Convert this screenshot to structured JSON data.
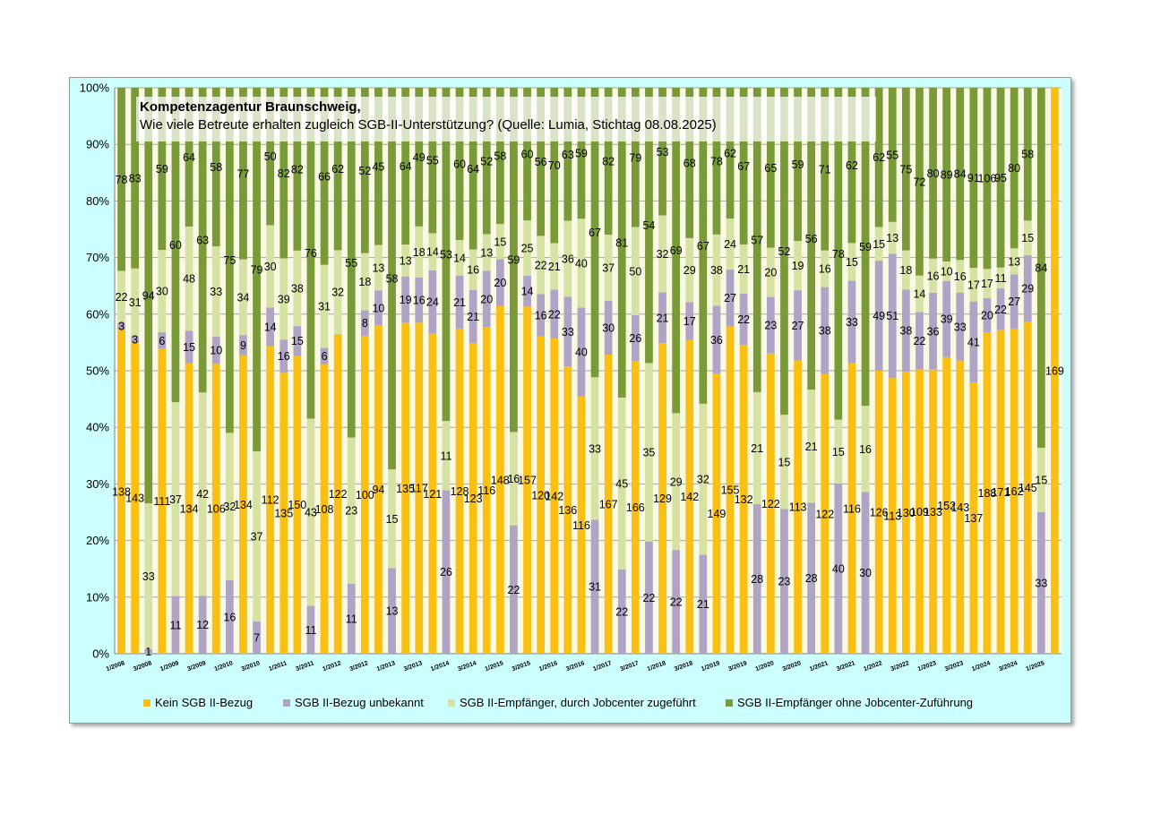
{
  "title": {
    "line1": "Kompetenzagentur Braunschweig,",
    "line2": "Wie viele Betreute erhalten zugleich SGB-II-Unterstützung? (Quelle: Lumia, Stichtag 08.08.2025)"
  },
  "colors": {
    "frame_background": "#ccffff",
    "plot_background": "#fafae4",
    "kein": "#f9c013",
    "unbekannt": "#b0a4c6",
    "zugefuehrt": "#d6e2a3",
    "ohne": "#7a9a3a"
  },
  "legend": [
    {
      "label": "Kein SGB II-Bezug",
      "color_key": "kein"
    },
    {
      "label": "SGB II-Bezug unbekannt",
      "color_key": "unbekannt"
    },
    {
      "label": "SGB II-Empfänger, durch Jobcenter zugeführt",
      "color_key": "zugefuehrt"
    },
    {
      "label": "SGB II-Empfänger ohne Jobcenter-Zuführung",
      "color_key": "ohne"
    }
  ],
  "chart_data": {
    "type": "bar",
    "stacked": "percent",
    "ylim": [
      0,
      100
    ],
    "yticks": [
      "0%",
      "10%",
      "20%",
      "30%",
      "40%",
      "50%",
      "60%",
      "70%",
      "80%",
      "90%",
      "100%"
    ],
    "grid": true,
    "legend_position": "bottom",
    "x_tick_labels": [
      "1/2008",
      "3/2008",
      "1/2009",
      "3/2009",
      "1/2010",
      "3/2010",
      "1/2011",
      "3/2011",
      "1/2012",
      "3/2012",
      "1/2013",
      "3/2013",
      "1/2014",
      "3/2014",
      "1/2015",
      "3/2015",
      "1/2016",
      "3/2016",
      "1/2017",
      "3/2017",
      "1/2018",
      "3/2018",
      "1/2019",
      "3/2019",
      "1/2020",
      "3/2020",
      "1/2021",
      "3/2021",
      "1/2022",
      "3/2022",
      "1/2023",
      "3/2023",
      "1/2024",
      "3/2024",
      "1/2025"
    ],
    "bar_count": 70,
    "series": [
      {
        "name": "Kein SGB II-Bezug",
        "color_key": "kein",
        "values": [
          138,
          143,
          null,
          111,
          null,
          134,
          null,
          106,
          null,
          134,
          null,
          112,
          135,
          150,
          null,
          108,
          122,
          null,
          100,
          94,
          null,
          135,
          117,
          121,
          null,
          128,
          123,
          116,
          148,
          null,
          157,
          120,
          142,
          136,
          116,
          null,
          167,
          null,
          166,
          null,
          129,
          null,
          142,
          null,
          149,
          155,
          132,
          null,
          122,
          null,
          113,
          null,
          122,
          null,
          116,
          null,
          126,
          113,
          130,
          109,
          133,
          152,
          143,
          137,
          188,
          171,
          162,
          145,
          null,
          169
        ]
      },
      {
        "name": "SGB II-Bezug unbekannt",
        "color_key": "unbekannt",
        "values": [
          3,
          3,
          1,
          6,
          11,
          15,
          12,
          10,
          16,
          9,
          7,
          14,
          16,
          15,
          11,
          6,
          null,
          11,
          8,
          10,
          13,
          19,
          16,
          24,
          26,
          21,
          21,
          20,
          20,
          22,
          14,
          16,
          22,
          33,
          40,
          31,
          30,
          22,
          26,
          22,
          21,
          22,
          17,
          21,
          36,
          27,
          22,
          28,
          23,
          23,
          27,
          28,
          38,
          40,
          33,
          30,
          49,
          51,
          38,
          22,
          36,
          39,
          33,
          41,
          20,
          22,
          27,
          29,
          33,
          null
        ]
      },
      {
        "name": "SGB II-Empfänger, durch Jobcenter zugeführt",
        "color_key": "zugefuehrt",
        "values": [
          22,
          31,
          33,
          30,
          37,
          48,
          42,
          33,
          32,
          34,
          37,
          30,
          39,
          38,
          43,
          31,
          32,
          23,
          18,
          13,
          15,
          13,
          18,
          14,
          11,
          14,
          16,
          13,
          15,
          16,
          25,
          22,
          21,
          36,
          40,
          33,
          37,
          45,
          50,
          35,
          32,
          29,
          29,
          32,
          38,
          24,
          21,
          21,
          20,
          15,
          19,
          21,
          16,
          15,
          15,
          16,
          15,
          13,
          18,
          14,
          16,
          10,
          16,
          17,
          17,
          11,
          13,
          15,
          15,
          null
        ]
      },
      {
        "name": "SGB II-Empfänger ohne Jobcenter-Zuführung",
        "color_key": "ohne",
        "values": [
          78,
          83,
          94,
          59,
          60,
          64,
          63,
          58,
          75,
          77,
          79,
          50,
          82,
          82,
          76,
          66,
          62,
          55,
          52,
          45,
          58,
          64,
          49,
          55,
          53,
          60,
          64,
          52,
          58,
          59,
          60,
          56,
          70,
          63,
          59,
          67,
          82,
          81,
          79,
          54,
          53,
          69,
          68,
          67,
          78,
          62,
          67,
          57,
          65,
          52,
          59,
          56,
          71,
          78,
          62,
          59,
          62,
          55,
          75,
          72,
          80,
          89,
          84,
          91,
          106,
          95,
          80,
          58,
          84,
          null
        ]
      }
    ]
  }
}
